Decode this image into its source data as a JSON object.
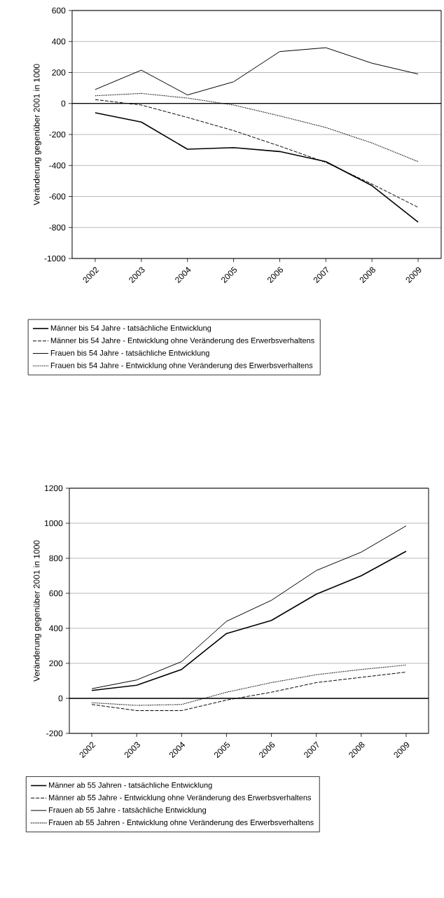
{
  "chart_data": [
    {
      "type": "line",
      "ylabel": "Veränderung gegenüber 2001 in 1000",
      "categories": [
        "2002",
        "2003",
        "2004",
        "2005",
        "2006",
        "2007",
        "2008",
        "2009"
      ],
      "series": [
        {
          "name": "Männer bis 54 Jahre - tatsächliche Entwicklung",
          "color": "#000000",
          "line_style": "solid",
          "values": [
            -60,
            -120,
            -295,
            -285,
            -310,
            -375,
            -530,
            -765
          ]
        },
        {
          "name": "Männer bis 54 Jahre - Entwicklung ohne Veränderung des Erwerbsverhaltens",
          "color": "#000000",
          "line_style": "dashed",
          "values": [
            25,
            -10,
            -90,
            -175,
            -275,
            -380,
            -520,
            -670
          ]
        },
        {
          "name": "Frauen bis 54 Jahre - tatsächliche Entwicklung",
          "color": "#000000",
          "line_style": "solid",
          "values": [
            90,
            215,
            55,
            140,
            335,
            360,
            260,
            190
          ]
        },
        {
          "name": "Frauen bis 54 Jahre - Entwicklung ohne Veränderung des Erwerbsverhaltens",
          "color": "#000000",
          "line_style": "dotted",
          "values": [
            50,
            65,
            35,
            -10,
            -80,
            -155,
            -255,
            -375
          ]
        }
      ],
      "ylim": [
        -1000,
        600
      ],
      "yticks": [
        -1000,
        -800,
        -600,
        -400,
        -200,
        0,
        200,
        400,
        600
      ],
      "grid": "y",
      "legend": "bottom",
      "ref_lines": [
        {
          "axis": "y",
          "value": 0,
          "color": "#000000"
        }
      ]
    },
    {
      "type": "line",
      "ylabel": "Veränderung gegenüber 2001 in 1000",
      "categories": [
        "2002",
        "2003",
        "2004",
        "2005",
        "2006",
        "2007",
        "2008",
        "2009"
      ],
      "series": [
        {
          "name": "Männer ab 55 Jahren - tatsächliche Entwicklung",
          "color": "#000000",
          "line_style": "solid",
          "values": [
            45,
            75,
            165,
            370,
            445,
            595,
            700,
            840
          ]
        },
        {
          "name": "Männer ab 55 Jahre - Entwicklung ohne Veränderung des Erwerbsverhaltens",
          "color": "#000000",
          "line_style": "dashed",
          "values": [
            -35,
            -70,
            -70,
            -10,
            35,
            90,
            120,
            150
          ]
        },
        {
          "name": "Frauen ab 55 Jahre - tatsächliche Entwicklung",
          "color": "#000000",
          "line_style": "solid",
          "values": [
            55,
            105,
            210,
            440,
            560,
            730,
            835,
            985
          ]
        },
        {
          "name": "Frauen ab 55 Jahren - Entwicklung ohne Veränderung des Erwerbsverhaltens",
          "color": "#000000",
          "line_style": "dotted",
          "values": [
            -25,
            -40,
            -35,
            35,
            90,
            135,
            165,
            190
          ]
        }
      ],
      "ylim": [
        -200,
        1200
      ],
      "yticks": [
        -200,
        0,
        200,
        400,
        600,
        800,
        1000,
        1200
      ],
      "grid": "y",
      "legend": "bottom",
      "ref_lines": [
        {
          "axis": "y",
          "value": 0,
          "color": "#000000"
        }
      ]
    }
  ]
}
